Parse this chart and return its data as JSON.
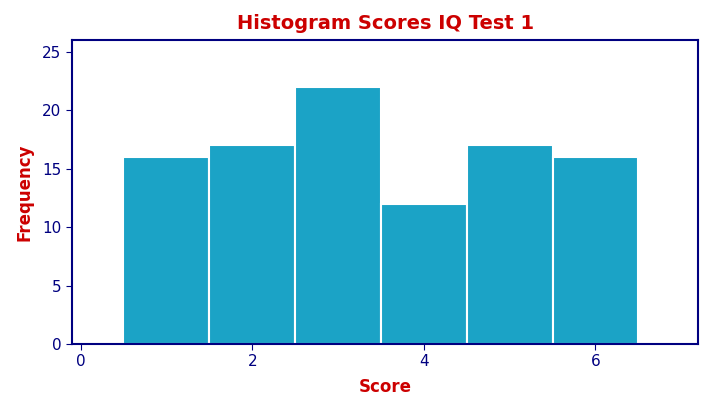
{
  "title": "Histogram Scores IQ Test 1",
  "xlabel": "Score",
  "ylabel": "Frequency",
  "bin_edges": [
    0.5,
    1.5,
    2.5,
    3.5,
    4.5,
    5.5,
    6.5
  ],
  "bar_heights": [
    16,
    17,
    22,
    12,
    17,
    16
  ],
  "bar_color": "#1BA3C6",
  "bar_edgecolor": "#ffffff",
  "bar_linewidth": 1.5,
  "xlim": [
    -0.1,
    7.2
  ],
  "ylim": [
    0,
    26
  ],
  "xticks": [
    0,
    2,
    4,
    6
  ],
  "yticks": [
    0,
    5,
    10,
    15,
    20,
    25
  ],
  "title_color": "#CC0000",
  "title_fontsize": 14,
  "label_color": "#CC0000",
  "label_fontsize": 12,
  "tick_label_color": "#000080",
  "tick_label_fontsize": 11,
  "spine_color": "#000080",
  "background_color": "#ffffff",
  "figure_background": "#ffffff"
}
